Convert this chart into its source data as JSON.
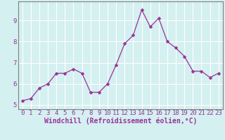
{
  "x": [
    0,
    1,
    2,
    3,
    4,
    5,
    6,
    7,
    8,
    9,
    10,
    11,
    12,
    13,
    14,
    15,
    16,
    17,
    18,
    19,
    20,
    21,
    22,
    23
  ],
  "y": [
    5.2,
    5.3,
    5.8,
    6.0,
    6.5,
    6.5,
    6.7,
    6.5,
    5.6,
    5.6,
    6.0,
    6.9,
    7.9,
    8.3,
    9.5,
    8.7,
    9.1,
    8.0,
    7.7,
    7.3,
    6.6,
    6.6,
    6.3,
    6.5
  ],
  "line_color": "#993399",
  "marker": "D",
  "marker_size": 2.5,
  "background_color": "#d4f0f0",
  "grid_color": "#ffffff",
  "axis_label_color": "#993399",
  "tick_color": "#993399",
  "xlabel": "Windchill (Refroidissement éolien,°C)",
  "ylabel": "",
  "xlim": [
    -0.5,
    23.5
  ],
  "ylim": [
    4.8,
    9.9
  ],
  "yticks": [
    5,
    6,
    7,
    8,
    9
  ],
  "xticks": [
    0,
    1,
    2,
    3,
    4,
    5,
    6,
    7,
    8,
    9,
    10,
    11,
    12,
    13,
    14,
    15,
    16,
    17,
    18,
    19,
    20,
    21,
    22,
    23
  ],
  "font_family": "monospace",
  "font_size": 6.5,
  "xlabel_fontsize": 7,
  "border_color": "#808080",
  "linewidth": 0.9
}
